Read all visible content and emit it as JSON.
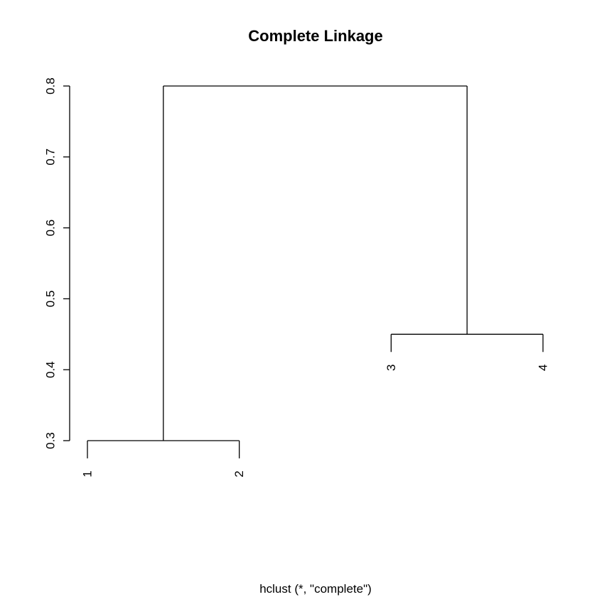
{
  "chart_data": {
    "type": "dendrogram",
    "title": "Complete Linkage",
    "xlabel": "hclust (*, \"complete\")",
    "ylabel": "",
    "ylim": [
      0.3,
      0.8
    ],
    "yticks": [
      0.3,
      0.4,
      0.5,
      0.6,
      0.7,
      0.8
    ],
    "ytick_labels": [
      "0.3",
      "0.4",
      "0.5",
      "0.6",
      "0.7",
      "0.8"
    ],
    "leaves": [
      "1",
      "2",
      "3",
      "4"
    ],
    "merges": [
      {
        "members": [
          "1",
          "2"
        ],
        "height": 0.3
      },
      {
        "members": [
          "3",
          "4"
        ],
        "height": 0.45
      },
      {
        "members": [
          "1",
          "2",
          "3",
          "4"
        ],
        "height": 0.8
      }
    ],
    "grid": false,
    "colors": {
      "line": "#000000",
      "background": "#ffffff"
    }
  }
}
